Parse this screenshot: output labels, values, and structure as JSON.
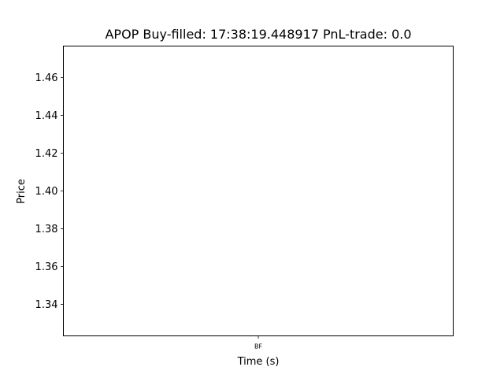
{
  "chart_data": {
    "type": "line",
    "title": "APOP  Buy-filled:  17:38:19.448917  PnL-trade:  0.0",
    "xlabel": "Time (s)",
    "ylabel": "Price",
    "ylim": [
      1.3233,
      1.4767
    ],
    "yticks": [
      "1.34",
      "1.36",
      "1.38",
      "1.40",
      "1.42",
      "1.44",
      "1.46"
    ],
    "ytick_values": [
      1.34,
      1.36,
      1.38,
      1.4,
      1.42,
      1.44,
      1.46
    ],
    "xticks": [
      "BF"
    ],
    "xtick_positions": [
      0.5
    ],
    "grid": false,
    "series": []
  }
}
